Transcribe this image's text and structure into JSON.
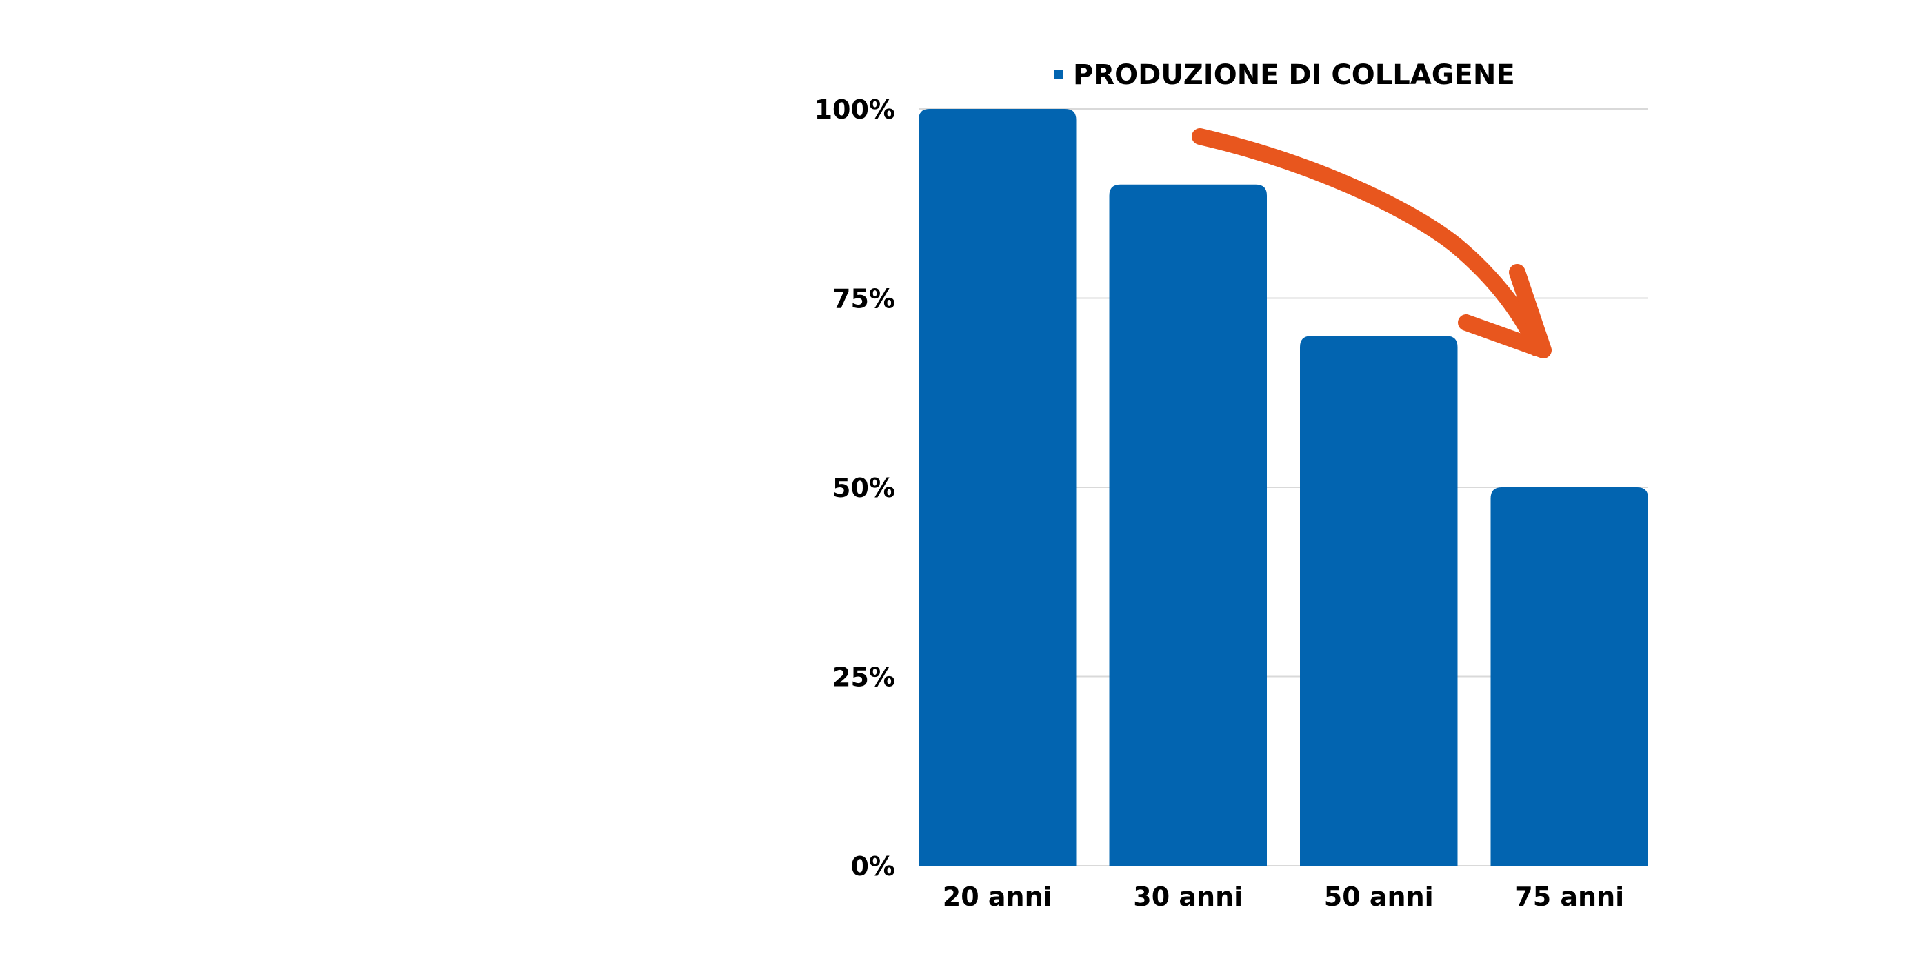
{
  "chart_data": {
    "type": "bar",
    "categories": [
      "20 anni",
      "30 anni",
      "50 anni",
      "75 anni"
    ],
    "series": [
      {
        "name": "PRODUZIONE DI COLLAGENE",
        "values": [
          100,
          90,
          70,
          50
        ],
        "color": "#0264b0"
      }
    ],
    "ylim": [
      0,
      100
    ],
    "yticks": [
      0,
      25,
      50,
      75,
      100
    ],
    "ytick_labels": [
      "0%",
      "25%",
      "50%",
      "75%",
      "100%"
    ],
    "xlabel": "",
    "ylabel": "",
    "grid": true,
    "grid_color": "#d9d9d9",
    "legend_position": "top",
    "annotation": {
      "type": "arrow",
      "color": "#e8561e",
      "meaning": "decline"
    }
  }
}
